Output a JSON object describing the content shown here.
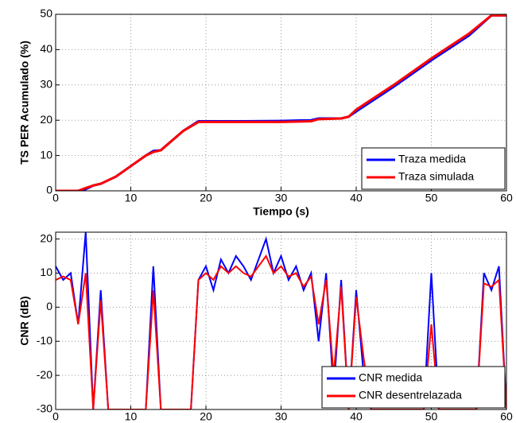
{
  "chart_data": [
    {
      "type": "line",
      "xlabel": "Tiempo (s)",
      "ylabel": "TS PER Acumulado (%)",
      "x": [
        0,
        3,
        4,
        5,
        6,
        7,
        8,
        10,
        12,
        13,
        14,
        17,
        19,
        25,
        30,
        34,
        35,
        38,
        39,
        40,
        45,
        50,
        55,
        58,
        60
      ],
      "series": [
        {
          "name": "Traza medida",
          "color": "#0000ff",
          "values": [
            0,
            0,
            0.5,
            1.5,
            2,
            3,
            4,
            7,
            10,
            11.3,
            11.5,
            17,
            19.7,
            19.7,
            19.8,
            20,
            20.5,
            20.5,
            21,
            22.5,
            29.5,
            37,
            44,
            49.7,
            49.7
          ]
        },
        {
          "name": "Traza simulada",
          "color": "#ff0000",
          "values": [
            0,
            0,
            0.8,
            1.5,
            2,
            3,
            4,
            7,
            10,
            11,
            11.5,
            17,
            19.5,
            19.5,
            19.5,
            19.7,
            20.3,
            20.5,
            21,
            23,
            30,
            37.5,
            44.5,
            49.7,
            49.7
          ]
        }
      ],
      "xlim": [
        0,
        60
      ],
      "xticks": [
        0,
        10,
        20,
        30,
        40,
        50,
        60
      ],
      "ylim": [
        0,
        50
      ],
      "yticks": [
        0,
        10,
        20,
        30,
        40,
        50
      ],
      "grid": true,
      "legend": "lower right"
    },
    {
      "type": "line",
      "ylabel": "CNR  (dB)",
      "x": [
        0,
        1,
        2,
        3,
        4,
        5,
        6,
        7,
        8,
        9,
        10,
        11,
        12,
        13,
        14,
        15,
        16,
        17,
        18,
        19,
        20,
        21,
        22,
        23,
        24,
        25,
        26,
        27,
        28,
        29,
        30,
        31,
        32,
        33,
        34,
        35,
        36,
        37,
        38,
        39,
        40,
        41,
        42,
        43,
        44,
        45,
        46,
        47,
        48,
        49,
        50,
        51,
        52,
        53,
        54,
        55,
        56,
        57,
        58,
        59,
        60
      ],
      "series": [
        {
          "name": "CNR medida",
          "color": "#0000ff",
          "values": [
            12,
            8,
            10,
            -5,
            22,
            -30,
            5,
            -30,
            -30,
            -30,
            -30,
            -30,
            -30,
            12,
            -30,
            -30,
            -30,
            -30,
            -30,
            8,
            12,
            5,
            14,
            10,
            15,
            12,
            8,
            14,
            20,
            10,
            15,
            8,
            12,
            5,
            10,
            -10,
            10,
            -25,
            8,
            -30,
            5,
            -20,
            -30,
            -30,
            -30,
            -30,
            -30,
            -30,
            -30,
            -30,
            10,
            -30,
            -30,
            -30,
            -30,
            -30,
            -30,
            10,
            5,
            12,
            -30
          ]
        },
        {
          "name": "CNR desentrelazada",
          "color": "#ff0000",
          "values": [
            8,
            9,
            8,
            -5,
            10,
            -30,
            2,
            -30,
            -30,
            -30,
            -30,
            -30,
            -30,
            5,
            -30,
            -30,
            -30,
            -30,
            -30,
            8,
            10,
            8,
            12,
            10,
            12,
            10,
            9,
            12,
            15,
            10,
            12,
            9,
            10,
            6,
            9,
            -5,
            8,
            -20,
            6,
            -30,
            3,
            -15,
            -30,
            -30,
            -30,
            -30,
            -30,
            -30,
            -30,
            -30,
            -5,
            -30,
            -30,
            -30,
            -30,
            -30,
            -30,
            7,
            6,
            8,
            -30
          ]
        }
      ],
      "xlim": [
        0,
        60
      ],
      "xticks": [
        0,
        10,
        20,
        30,
        40,
        50,
        60
      ],
      "ylim": [
        -30,
        22
      ],
      "yticks": [
        -30,
        -20,
        -10,
        0,
        10,
        20
      ],
      "grid": true,
      "legend": "lower right"
    }
  ]
}
